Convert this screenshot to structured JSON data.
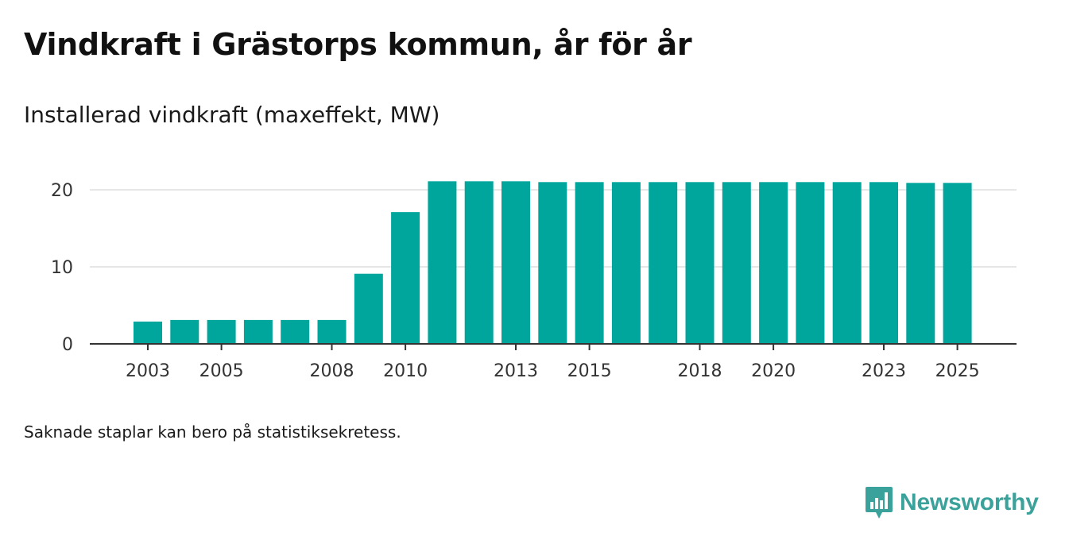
{
  "title": "Vindkraft i Grästorps kommun, år för år",
  "subtitle": "Installerad vindkraft (maxeffekt, MW)",
  "note": "Saknade staplar kan bero på statistiksekretess.",
  "brand": {
    "name": "Newsworthy",
    "color": "#3aa29a",
    "icon": "bar-chart-speech-bubble-icon"
  },
  "colors": {
    "bar": "#00a69c",
    "grid": "#dddddd",
    "axis": "#333333"
  },
  "chart_data": {
    "type": "bar",
    "title": "Installerad vindkraft (maxeffekt, MW)",
    "xlabel": "",
    "ylabel": "",
    "categories": [
      2003,
      2004,
      2005,
      2006,
      2007,
      2008,
      2009,
      2010,
      2011,
      2012,
      2013,
      2014,
      2015,
      2016,
      2017,
      2018,
      2019,
      2020,
      2021,
      2022,
      2023,
      2024,
      2025
    ],
    "values": [
      2.9,
      3.1,
      3.1,
      3.1,
      3.1,
      3.1,
      9.1,
      17.1,
      21.1,
      21.1,
      21.1,
      21.0,
      21.0,
      21.0,
      21.0,
      21.0,
      21.0,
      21.0,
      21.0,
      21.0,
      21.0,
      20.9,
      20.9
    ],
    "ylim": [
      0,
      22
    ],
    "yticks": [
      0,
      10,
      20
    ],
    "xticks": [
      2003,
      2005,
      2008,
      2010,
      2013,
      2015,
      2018,
      2020,
      2023,
      2025
    ],
    "grid": true,
    "legend": "none"
  }
}
